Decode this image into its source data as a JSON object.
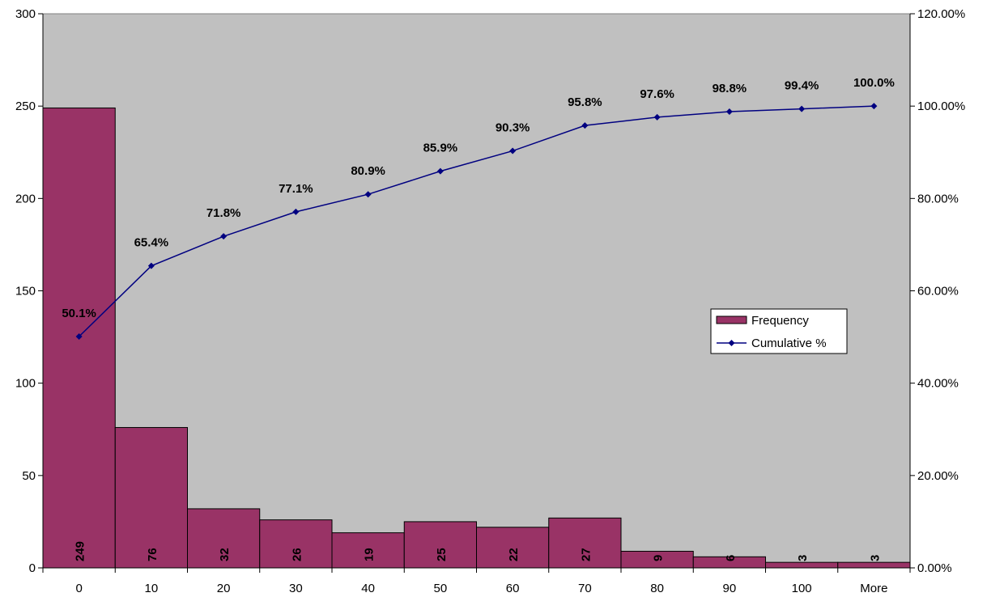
{
  "chart_data": {
    "type": "bar",
    "categories": [
      "0",
      "10",
      "20",
      "30",
      "40",
      "50",
      "60",
      "70",
      "80",
      "90",
      "100",
      "More"
    ],
    "series": [
      {
        "name": "Frequency",
        "type": "bar",
        "axis": "left",
        "color": "#993366",
        "values": [
          249,
          76,
          32,
          26,
          19,
          25,
          22,
          27,
          9,
          6,
          3,
          3
        ],
        "labels": [
          "249",
          "76",
          "32",
          "26",
          "19",
          "25",
          "22",
          "27",
          "9",
          "6",
          "3",
          "3"
        ]
      },
      {
        "name": "Cumulative %",
        "type": "line",
        "axis": "right",
        "color": "#000080",
        "marker": "diamond",
        "values": [
          50.1,
          65.4,
          71.8,
          77.1,
          80.9,
          85.9,
          90.3,
          95.8,
          97.6,
          98.8,
          99.4,
          100.0
        ],
        "labels": [
          "50.1%",
          "65.4%",
          "71.8%",
          "77.1%",
          "80.9%",
          "85.9%",
          "90.3%",
          "95.8%",
          "97.6%",
          "98.8%",
          "99.4%",
          "100.0%"
        ]
      }
    ],
    "y_left": {
      "range": [
        0,
        300
      ],
      "ticks": [
        0,
        50,
        100,
        150,
        200,
        250,
        300
      ],
      "tick_labels": [
        "0",
        "50",
        "100",
        "150",
        "200",
        "250",
        "300"
      ]
    },
    "y_right": {
      "range": [
        0,
        120
      ],
      "ticks": [
        0,
        20,
        40,
        60,
        80,
        100,
        120
      ],
      "tick_labels": [
        "0.00%",
        "20.00%",
        "40.00%",
        "60.00%",
        "80.00%",
        "100.00%",
        "120.00%"
      ]
    },
    "title": "",
    "xlabel": "",
    "ylabel": "",
    "grid": false,
    "plot_background": "#c0c0c0",
    "legend": {
      "position": "right",
      "entries": [
        "Frequency",
        "Cumulative %"
      ]
    }
  }
}
